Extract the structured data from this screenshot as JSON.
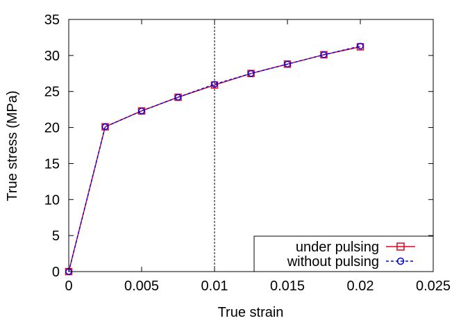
{
  "chart_data": {
    "type": "line",
    "xlabel": "True strain",
    "ylabel": "True stress (MPa)",
    "xlim": [
      0,
      0.025
    ],
    "ylim": [
      0,
      35
    ],
    "x_ticks": [
      0,
      0.005,
      0.01,
      0.015,
      0.02,
      0.025
    ],
    "x_tick_labels": [
      "0",
      "0.005",
      "0.01",
      "0.015",
      "0.02",
      "0.025"
    ],
    "y_ticks": [
      0,
      5,
      10,
      15,
      20,
      25,
      30,
      35
    ],
    "y_tick_labels": [
      "0",
      "5",
      "10",
      "15",
      "20",
      "25",
      "30",
      "35"
    ],
    "grid": false,
    "legend_position": "bottom-right",
    "reference_line": {
      "x": 0.01,
      "style": "dashed",
      "color": "#000000"
    },
    "series": [
      {
        "name": "under pulsing",
        "color": "#e3001b",
        "marker": "square",
        "line_style": "solid",
        "x": [
          0,
          0.0025,
          0.005,
          0.0075,
          0.01,
          0.0125,
          0.015,
          0.0175,
          0.02
        ],
        "y": [
          0,
          20.1,
          22.3,
          24.2,
          25.9,
          27.5,
          28.8,
          30.1,
          31.2
        ]
      },
      {
        "name": "without pulsing",
        "color": "#0000ee",
        "marker": "circle",
        "line_style": "dashed",
        "x": [
          0,
          0.0025,
          0.005,
          0.0075,
          0.01,
          0.0125,
          0.015,
          0.0175,
          0.02
        ],
        "y": [
          0,
          20.1,
          22.3,
          24.2,
          26.0,
          27.5,
          28.8,
          30.1,
          31.3
        ]
      }
    ]
  }
}
